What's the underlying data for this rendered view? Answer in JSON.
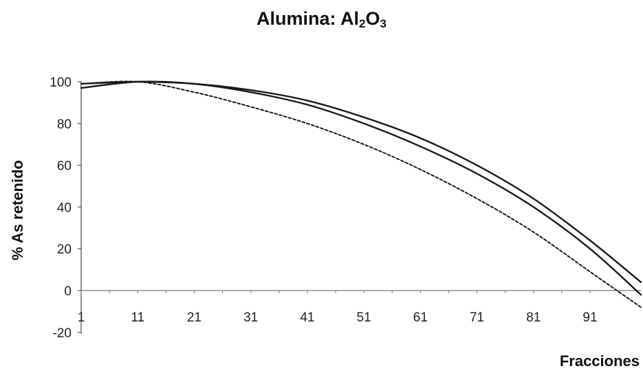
{
  "chart_data": {
    "type": "line",
    "title_main": "Alumina: Al",
    "title_sub1": "2",
    "title_mid": "O",
    "title_sub2": "3",
    "xlabel": "Fracciones",
    "ylabel": "% As retenido",
    "xlim": [
      1,
      100
    ],
    "ylim": [
      -20,
      100
    ],
    "x_ticks": [
      1,
      11,
      21,
      31,
      41,
      51,
      61,
      71,
      81,
      91
    ],
    "y_ticks": [
      100,
      80,
      60,
      40,
      20,
      0,
      -20
    ],
    "grid": false,
    "legend": "none",
    "series": [
      {
        "style": "solid",
        "x": [
          1,
          11,
          21,
          31,
          41,
          51,
          61,
          71,
          81,
          91,
          100
        ],
        "values": [
          99,
          100,
          99,
          96,
          91,
          83,
          73,
          60,
          44,
          24,
          4
        ]
      },
      {
        "style": "solid",
        "x": [
          1,
          11,
          21,
          31,
          41,
          51,
          61,
          71,
          81,
          91,
          100
        ],
        "values": [
          97,
          100,
          99,
          95,
          89,
          80,
          69,
          56,
          40,
          20,
          -2
        ]
      },
      {
        "style": "dashed",
        "x": [
          1,
          11,
          21,
          31,
          41,
          51,
          61,
          71,
          81,
          91,
          100
        ],
        "values": [
          99,
          100,
          95,
          88,
          80,
          70,
          58,
          44,
          28,
          9,
          -8
        ]
      }
    ]
  }
}
